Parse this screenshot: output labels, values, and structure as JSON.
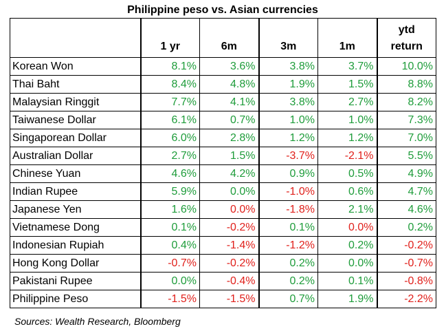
{
  "chart_data": {
    "type": "table",
    "title": "Philippine peso vs. Asian currencies",
    "columns": [
      "",
      "1 yr",
      "6m",
      "3m",
      "1m",
      "ytd return"
    ],
    "rows": [
      {
        "currency": "Korean Won",
        "values": [
          "8.1%",
          "3.6%",
          "3.8%",
          "3.7%",
          "10.0%"
        ]
      },
      {
        "currency": "Thai Baht",
        "values": [
          "8.4%",
          "4.8%",
          "1.9%",
          "1.5%",
          "8.8%"
        ]
      },
      {
        "currency": "Malaysian Ringgit",
        "values": [
          "7.7%",
          "4.1%",
          "3.8%",
          "2.7%",
          "8.2%"
        ]
      },
      {
        "currency": "Taiwanese Dollar",
        "values": [
          "6.1%",
          "0.7%",
          "1.0%",
          "1.0%",
          "7.3%"
        ]
      },
      {
        "currency": "Singaporean Dollar",
        "values": [
          "6.0%",
          "2.8%",
          "1.2%",
          "1.2%",
          "7.0%"
        ]
      },
      {
        "currency": "Australian Dollar",
        "values": [
          "2.7%",
          "1.5%",
          "-3.7%",
          "-2.1%",
          "5.5%"
        ]
      },
      {
        "currency": "Chinese Yuan",
        "values": [
          "4.6%",
          "4.2%",
          "0.9%",
          "0.5%",
          "4.9%"
        ]
      },
      {
        "currency": "Indian Rupee",
        "values": [
          "5.9%",
          "0.0%",
          "-1.0%",
          "0.6%",
          "4.7%"
        ]
      },
      {
        "currency": "Japanese Yen",
        "values": [
          "1.6%",
          "0.0%",
          "-1.8%",
          "2.1%",
          "4.6%"
        ]
      },
      {
        "currency": "Vietnamese Dong",
        "values": [
          "0.1%",
          "-0.2%",
          "0.1%",
          "0.0%",
          "0.2%"
        ]
      },
      {
        "currency": "Indonesian Rupiah",
        "values": [
          "0.4%",
          "-1.4%",
          "-1.2%",
          "0.2%",
          "-0.2%"
        ]
      },
      {
        "currency": "Hong Kong Dollar",
        "values": [
          "-0.7%",
          "-0.2%",
          "0.2%",
          "0.0%",
          "-0.7%"
        ]
      },
      {
        "currency": "Pakistani Rupee",
        "values": [
          "0.0%",
          "-0.4%",
          "0.2%",
          "0.1%",
          "-0.8%"
        ]
      },
      {
        "currency": "Philippine Peso",
        "values": [
          "-1.5%",
          "-1.5%",
          "0.7%",
          "1.9%",
          "-2.2%"
        ]
      }
    ],
    "colors": {
      "positive": "#1e9c3a",
      "negative": "#e0201b",
      "neutral": "#1e9c3a",
      "zero_red_cells": [
        [
          8,
          1
        ],
        [
          9,
          3
        ]
      ]
    },
    "source": "Sources: Wealth Research, Bloomberg"
  }
}
